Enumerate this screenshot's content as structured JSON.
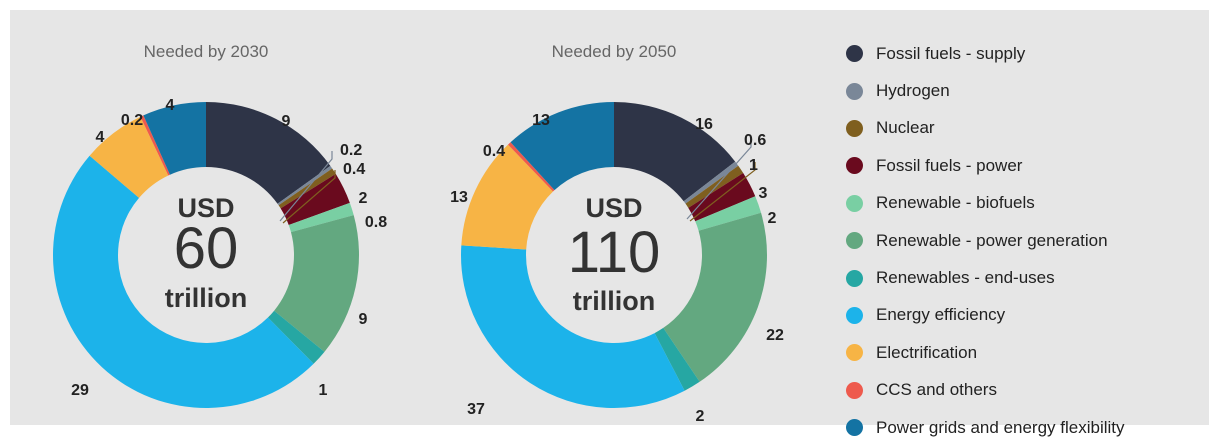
{
  "chart_data": [
    {
      "type": "donut",
      "title": "Needed by 2030",
      "center": {
        "prefix": "USD",
        "value": "60",
        "unit": "trillion"
      },
      "categories": [
        "Fossil fuels - supply",
        "Hydrogen",
        "Nuclear",
        "Fossil fuels - power",
        "Renewable - biofuels",
        "Renewable - power generation",
        "Renewables - end-uses",
        "Energy efficiency",
        "Electrification",
        "CCS and others",
        "Power grids and energy flexibility"
      ],
      "values": [
        9,
        0.2,
        0.4,
        2,
        0.8,
        9,
        1,
        29,
        4,
        0.2,
        4
      ],
      "labels": [
        "9",
        "0.2",
        "0.4",
        "2",
        "0.8",
        "9",
        "1",
        "29",
        "4",
        "0.2",
        "4"
      ]
    },
    {
      "type": "donut",
      "title": "Needed by 2050",
      "center": {
        "prefix": "USD",
        "value": "110",
        "unit": "trillion"
      },
      "categories": [
        "Fossil fuels - supply",
        "Hydrogen",
        "Nuclear",
        "Fossil fuels - power",
        "Renewable - biofuels",
        "Renewable - power generation",
        "Renewables - end-uses",
        "Energy efficiency",
        "Electrification",
        "CCS and others",
        "Power grids and energy flexibility"
      ],
      "values": [
        16,
        0.6,
        1,
        3,
        2,
        22,
        2,
        37,
        13,
        0.4,
        13
      ],
      "labels": [
        "16",
        "0.6",
        "1",
        "3",
        "2",
        "22",
        "2",
        "37",
        "13",
        "0.4",
        "13"
      ]
    }
  ],
  "legend": [
    {
      "label": "Fossil fuels - supply",
      "color": "#2e3447"
    },
    {
      "label": "Hydrogen",
      "color": "#7a8798"
    },
    {
      "label": "Nuclear",
      "color": "#7f5f1f"
    },
    {
      "label": "Fossil fuels - power",
      "color": "#6a0a1e"
    },
    {
      "label": "Renewable - biofuels",
      "color": "#79cfa3"
    },
    {
      "label": "Renewable - power generation",
      "color": "#63a880"
    },
    {
      "label": "Renewables - end-uses",
      "color": "#26a7a3"
    },
    {
      "label": "Energy efficiency",
      "color": "#1cb3ea"
    },
    {
      "label": "Electrification",
      "color": "#f7b445"
    },
    {
      "label": "CCS and others",
      "color": "#ee5a4d"
    },
    {
      "label": "Power grids and energy flexibility",
      "color": "#1473a3"
    }
  ]
}
